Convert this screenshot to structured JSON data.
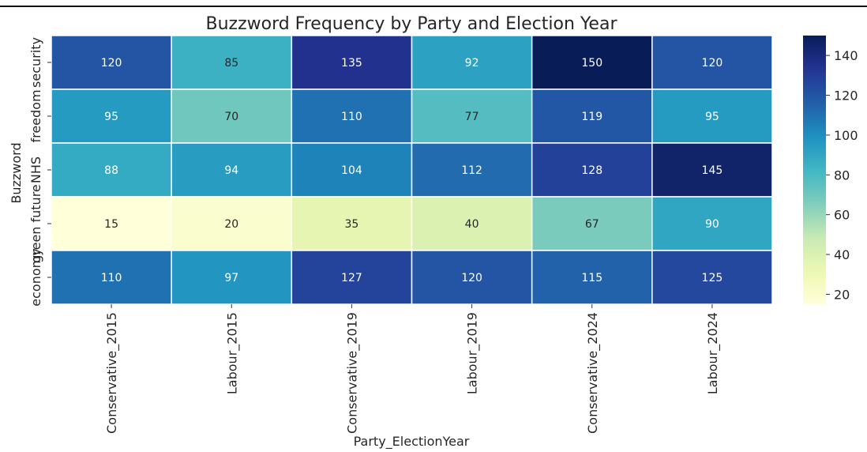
{
  "chart_data": {
    "type": "heatmap",
    "title": "Buzzword Frequency by Party and Election Year",
    "xlabel": "Party_ElectionYear",
    "ylabel": "Buzzword",
    "x_categories": [
      "Conservative_2015",
      "Labour_2015",
      "Conservative_2019",
      "Labour_2019",
      "Conservative_2024",
      "Labour_2024"
    ],
    "y_categories": [
      "security",
      "freedom",
      "NHS",
      "green future",
      "economy"
    ],
    "values": [
      [
        120,
        85,
        135,
        92,
        150,
        120
      ],
      [
        95,
        70,
        110,
        77,
        119,
        95
      ],
      [
        88,
        94,
        104,
        112,
        128,
        145
      ],
      [
        15,
        20,
        35,
        40,
        67,
        90
      ],
      [
        110,
        97,
        127,
        120,
        115,
        125
      ]
    ],
    "colorbar": {
      "colormap": "YlGnBu",
      "range": [
        15,
        150
      ],
      "ticks": [
        20,
        40,
        60,
        80,
        100,
        120,
        140
      ]
    },
    "annotations": true,
    "grid": false,
    "cell_border_color": "#ffffff"
  }
}
